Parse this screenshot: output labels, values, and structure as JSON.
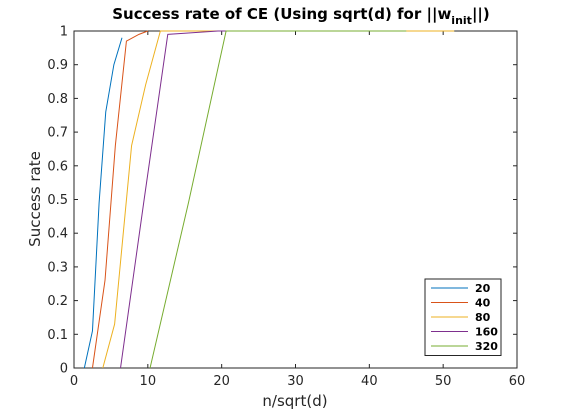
{
  "chart_data": {
    "type": "line",
    "title": "Success rate of CE (Using sqrt(d) for ||w",
    "title_sub": "init",
    "title_end": "||)",
    "xlabel": "n/sqrt(d)",
    "ylabel": "Success rate",
    "xlim": [
      0,
      60
    ],
    "ylim": [
      0,
      1
    ],
    "xticks": [
      0,
      10,
      20,
      30,
      40,
      50,
      60
    ],
    "yticks": [
      0,
      0.1,
      0.2,
      0.3,
      0.4,
      0.5,
      0.6,
      0.7,
      0.8,
      0.9,
      1
    ],
    "grid": false,
    "legend_position": "bottom-right",
    "series": [
      {
        "name": "20",
        "color": "#0072BD",
        "x": [
          1.4,
          2.5,
          3.4,
          4.3,
          5.4,
          6.5
        ],
        "y": [
          0,
          0.11,
          0.49,
          0.76,
          0.9,
          0.98
        ]
      },
      {
        "name": "40",
        "color": "#D95319",
        "x": [
          2.5,
          4.2,
          5.6,
          7.1,
          8.8,
          10
        ],
        "y": [
          0,
          0.26,
          0.66,
          0.97,
          0.99,
          1
        ]
      },
      {
        "name": "80",
        "color": "#EDB120",
        "x": [
          3.9,
          5.5,
          7.8,
          9.7,
          11.7,
          51.5
        ],
        "y": [
          0,
          0.13,
          0.66,
          0.84,
          1,
          1
        ]
      },
      {
        "name": "160",
        "color": "#7E2F8E",
        "x": [
          6.3,
          9.5,
          12.7,
          16,
          19.5,
          22
        ],
        "y": [
          0,
          0.5,
          0.99,
          0.995,
          1,
          1
        ]
      },
      {
        "name": "320",
        "color": "#77AC30",
        "x": [
          10.3,
          15.5,
          20.6,
          25.5,
          35,
          45
        ],
        "y": [
          0,
          0.49,
          1,
          1,
          1,
          1
        ]
      }
    ]
  }
}
